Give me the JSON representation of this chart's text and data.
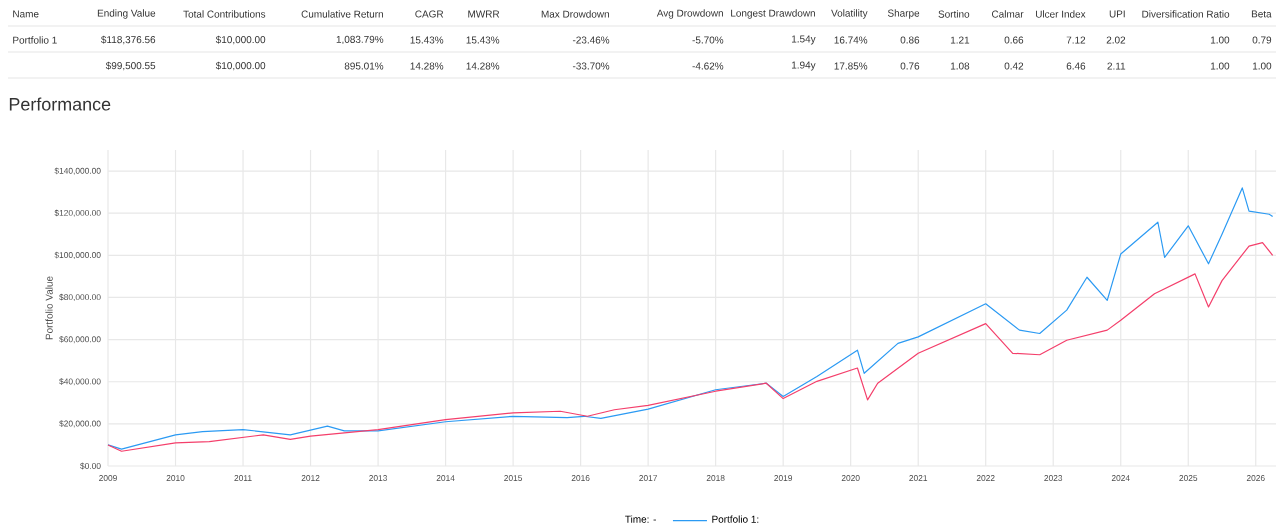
{
  "chart_data": [
    {
      "type": "other",
      "annotations": [
        "Name",
        "Ending Value",
        "Total Contributions",
        "Cumulative Return",
        "CAGR",
        "MWRR",
        "Max Drowdown",
        "Avg Drowdown",
        "Longest Drawdown",
        "Volatility",
        "Sharpe",
        "Sortino",
        "Calmar",
        "Ulcer Index",
        "UPI",
        "Diversification Ratio",
        "Beta",
        "Portfolio 1",
        "$118,376.56",
        "$10,000.00",
        "1,083.79%",
        "15.43%",
        "15.43%",
        "-23.46%",
        "-5.70%",
        "1.54y",
        "16.74%",
        "0.86",
        "1.21",
        "0.66",
        "7.12",
        "2.02",
        "1.00",
        "0.79",
        "$99,500.55",
        "$10,000.00",
        "895.01%",
        "14.28%",
        "14.28%",
        "-33.70%",
        "-4.62%",
        "1.94y",
        "17.85%",
        "0.76",
        "1.08",
        "0.42",
        "6.46",
        "2.11",
        "1.00",
        "1.00"
      ]
    },
    {
      "type": "line",
      "title": "Performance",
      "ylabel": "Portfolio Value",
      "legend_title": "Time: -",
      "legend": "bottom",
      "grid": true,
      "line_style": "solid",
      "xlim": [
        2009,
        2026.3
      ],
      "xticks": [
        2009,
        2010,
        2011,
        2012,
        2013,
        2014,
        2015,
        2016,
        2017,
        2018,
        2019,
        2020,
        2021,
        2022,
        2023,
        2024,
        2025,
        2026
      ],
      "ylim": [
        0,
        150000
      ],
      "yticks": [
        {
          "value": 0,
          "label": "$0.00"
        },
        {
          "value": 20000,
          "label": "$20,000.00"
        },
        {
          "value": 40000,
          "label": "$40,000.00"
        },
        {
          "value": 60000,
          "label": "$60,000.00"
        },
        {
          "value": 80000,
          "label": "$80,000.00"
        },
        {
          "value": 100000,
          "label": "$100,000.00"
        },
        {
          "value": 120000,
          "label": "$120,000.00"
        },
        {
          "value": 140000,
          "label": "$140,000.00"
        }
      ],
      "series": [
        {
          "name": "Portfolio 1:",
          "color": "#2b9af3",
          "x": [
            2009,
            2009.2,
            2010,
            2010.4,
            2011,
            2011.7,
            2012.25,
            2012.5,
            2013,
            2014,
            2015,
            2015.8,
            2016.05,
            2016.3,
            2017,
            2018,
            2018.75,
            2019,
            2019.5,
            2020.1,
            2020.2,
            2020.7,
            2021,
            2022,
            2022.5,
            2022.8,
            2023.2,
            2023.5,
            2023.8,
            2024,
            2024.55,
            2024.65,
            2025,
            2025.3,
            2025.5,
            2025.8,
            2025.9,
            2026.2,
            2026.25
          ],
          "values": [
            10000,
            8000,
            14800,
            16300,
            17300,
            14800,
            18900,
            16700,
            16700,
            21000,
            23600,
            23000,
            23600,
            22600,
            27000,
            36200,
            39300,
            33000,
            42500,
            55000,
            44000,
            58200,
            61300,
            77000,
            64500,
            62900,
            74000,
            89600,
            78600,
            100600,
            115700,
            99000,
            114000,
            96000,
            110000,
            132000,
            121000,
            119500,
            118400
          ]
        },
        {
          "color": "#f43f6b",
          "x": [
            2009,
            2009.2,
            2010,
            2010.5,
            2011.3,
            2011.7,
            2012,
            2013,
            2014,
            2015,
            2015.7,
            2016.1,
            2016.5,
            2017,
            2018,
            2018.75,
            2019,
            2019.5,
            2020.1,
            2020.25,
            2020.4,
            2021,
            2022,
            2022.4,
            2022.8,
            2023.2,
            2023.8,
            2024,
            2024.5,
            2025.1,
            2025.3,
            2025.5,
            2025.9,
            2026.1,
            2026.25
          ],
          "values": [
            10000,
            7000,
            11000,
            11600,
            14800,
            12600,
            14200,
            17300,
            22000,
            25200,
            26000,
            23600,
            26700,
            28800,
            35500,
            39300,
            32000,
            40200,
            46500,
            31400,
            39300,
            53500,
            67600,
            53500,
            52800,
            59700,
            64500,
            69200,
            81800,
            91200,
            75500,
            88000,
            104400,
            106000,
            100000
          ]
        }
      ]
    }
  ]
}
